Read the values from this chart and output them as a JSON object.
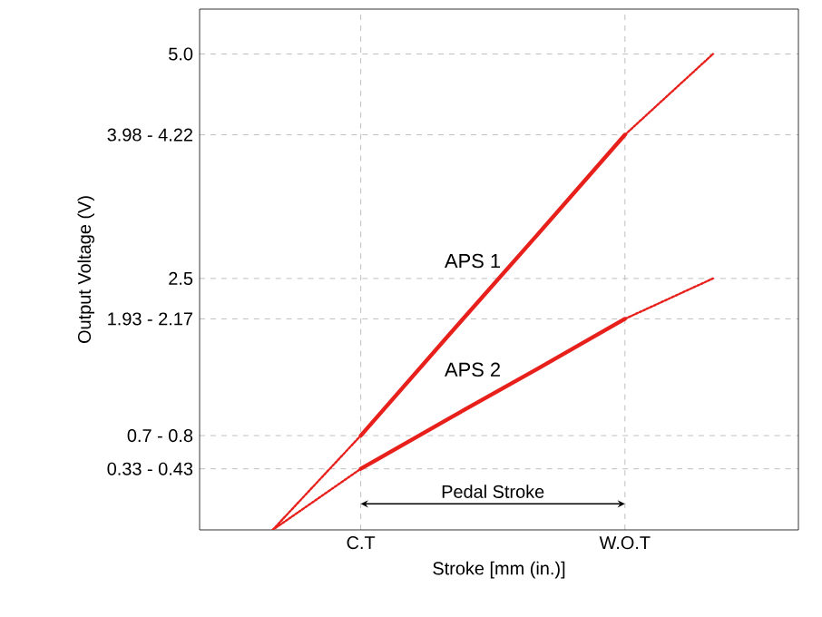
{
  "chart_data": {
    "type": "line",
    "xlabel": "Stroke [mm (in.)]",
    "ylabel": "Output Voltage (V)",
    "categories": [
      null,
      "C.T",
      null,
      null,
      "W.O.T",
      null
    ],
    "ylim": [
      -0.3,
      5.5
    ],
    "yticks": [
      {
        "value": 0.38,
        "label": "0.33 - 0.43"
      },
      {
        "value": 0.75,
        "label": "0.7 - 0.8"
      },
      {
        "value": 2.05,
        "label": "1.93 - 2.17"
      },
      {
        "value": 2.5,
        "label": "2.5"
      },
      {
        "value": 4.1,
        "label": "3.98 - 4.22"
      },
      {
        "value": 5.0,
        "label": "5.0"
      }
    ],
    "grid": true,
    "series": [
      {
        "name": "APS 1",
        "color": "#e8201c",
        "values": [
          null,
          0.75,
          1.87,
          2.98,
          4.1,
          null
        ],
        "line_style": "solid"
      },
      {
        "name": "APS 2",
        "color": "#e8201c",
        "values": [
          null,
          0.38,
          0.94,
          1.49,
          2.05,
          null
        ],
        "line_style": "solid"
      },
      {
        "color": "#e8201c",
        "values": [
          -0.3,
          0.75,
          null,
          null,
          null,
          null
        ],
        "line_style": "dotted"
      },
      {
        "color": "#e8201c",
        "values": [
          null,
          null,
          null,
          null,
          4.1,
          5.0
        ],
        "line_style": "dotted"
      },
      {
        "color": "#e8201c",
        "values": [
          -0.3,
          0.38,
          null,
          null,
          null,
          null
        ],
        "line_style": "dotted"
      },
      {
        "color": "#e8201c",
        "values": [
          null,
          null,
          null,
          null,
          2.05,
          2.5
        ],
        "line_style": "dotted"
      }
    ],
    "annotations": [
      "Pedal Stroke"
    ]
  }
}
